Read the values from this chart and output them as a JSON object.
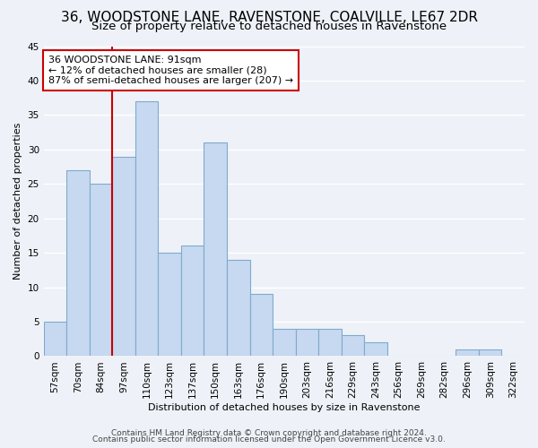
{
  "title": "36, WOODSTONE LANE, RAVENSTONE, COALVILLE, LE67 2DR",
  "subtitle": "Size of property relative to detached houses in Ravenstone",
  "xlabel": "Distribution of detached houses by size in Ravenstone",
  "ylabel": "Number of detached properties",
  "bar_labels": [
    "57sqm",
    "70sqm",
    "84sqm",
    "97sqm",
    "110sqm",
    "123sqm",
    "137sqm",
    "150sqm",
    "163sqm",
    "176sqm",
    "190sqm",
    "203sqm",
    "216sqm",
    "229sqm",
    "243sqm",
    "256sqm",
    "269sqm",
    "282sqm",
    "296sqm",
    "309sqm",
    "322sqm"
  ],
  "bar_values": [
    5,
    27,
    25,
    29,
    37,
    15,
    16,
    31,
    14,
    9,
    4,
    4,
    4,
    3,
    2,
    0,
    0,
    0,
    1,
    1,
    0
  ],
  "bar_color": "#c6d9f0",
  "bar_edge_color": "#7faacc",
  "annotation_title": "36 WOODSTONE LANE: 91sqm",
  "annotation_line1": "← 12% of detached houses are smaller (28)",
  "annotation_line2": "87% of semi-detached houses are larger (207) →",
  "annotation_box_color": "#ffffff",
  "annotation_border_color": "#cc0000",
  "subject_line_color": "#cc0000",
  "subject_line_bar_index": 3,
  "ylim": [
    0,
    45
  ],
  "yticks": [
    0,
    5,
    10,
    15,
    20,
    25,
    30,
    35,
    40,
    45
  ],
  "footer1": "Contains HM Land Registry data © Crown copyright and database right 2024.",
  "footer2": "Contains public sector information licensed under the Open Government Licence v3.0.",
  "background_color": "#eef2f8",
  "grid_color": "#ffffff",
  "title_fontsize": 11,
  "subtitle_fontsize": 9.5,
  "axis_fontsize": 8,
  "tick_fontsize": 7.5,
  "footer_fontsize": 6.5
}
